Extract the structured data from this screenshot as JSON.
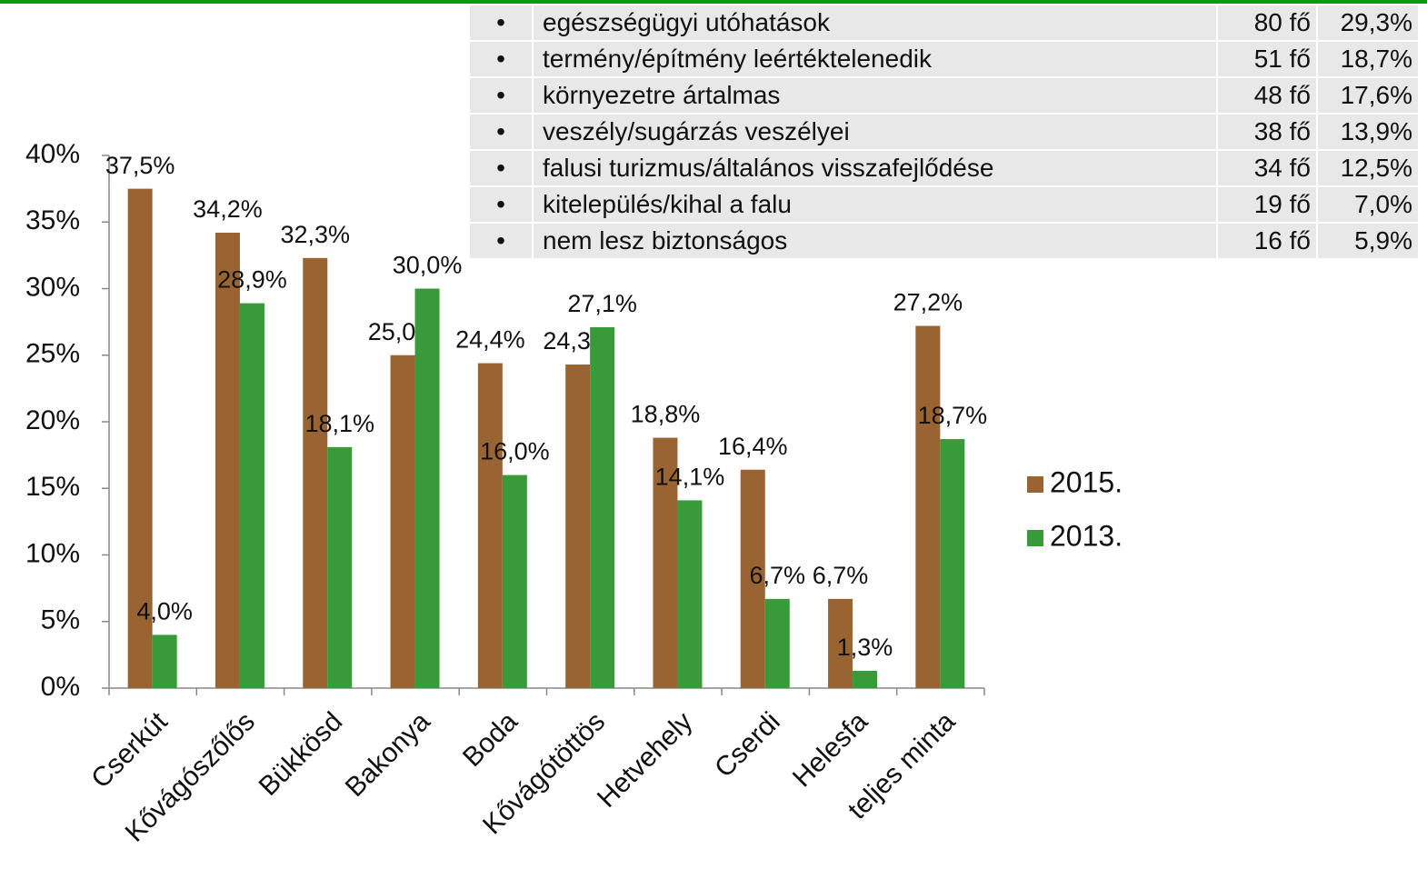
{
  "chart_data": {
    "type": "bar",
    "categories": [
      "Cserkút",
      "Kővágószőlős",
      "Bükkösd",
      "Bakonya",
      "Boda",
      "Kővágótöttös",
      "Hetvehely",
      "Cserdi",
      "Helesfa",
      "teljes minta"
    ],
    "series": [
      {
        "name": "2015.",
        "color": "#9a6432",
        "values": [
          37.5,
          34.2,
          32.3,
          25.0,
          24.4,
          24.3,
          18.8,
          16.4,
          6.7,
          27.2
        ],
        "value_labels": [
          "37,5%",
          "34,2%",
          "32,3%",
          "25,0%",
          "24,4%",
          "24,3%",
          "18,8%",
          "16,4%",
          "6,7%",
          "27,2%"
        ]
      },
      {
        "name": "2013.",
        "color": "#389a38",
        "values": [
          4.0,
          28.9,
          18.1,
          30.0,
          16.0,
          27.1,
          14.1,
          6.7,
          1.3,
          18.7
        ],
        "value_labels": [
          "4,0%",
          "28,9%",
          "18,1%",
          "30,0%",
          "16,0%",
          "27,1%",
          "14,1%",
          "6,7%",
          "1,3%",
          "18,7%"
        ]
      }
    ],
    "ylim": [
      0,
      40
    ],
    "yticks": [
      {
        "value": 0,
        "label": "0%"
      },
      {
        "value": 5,
        "label": "5%"
      },
      {
        "value": 10,
        "label": "10%"
      },
      {
        "value": 15,
        "label": "15%"
      },
      {
        "value": 20,
        "label": "20%"
      },
      {
        "value": 25,
        "label": "25%"
      },
      {
        "value": 30,
        "label": "30%"
      },
      {
        "value": 35,
        "label": "35%"
      },
      {
        "value": 40,
        "label": "40%"
      }
    ],
    "legend": "right"
  },
  "table": {
    "rows": [
      [
        "egészségügyi utóhatások",
        "80 fő",
        "29,3%"
      ],
      [
        "termény/építmény leértéktelenedik",
        "51 fő",
        "18,7%"
      ],
      [
        "környezetre ártalmas",
        "48 fő",
        "17,6%"
      ],
      [
        "veszély/sugárzás veszélyei",
        "38 fő",
        "13,9%"
      ],
      [
        "falusi turizmus/általános visszafejlődése",
        "34 fő",
        "12,5%"
      ],
      [
        "kitelepülés/kihal a falu",
        "19 fő",
        "7,0%"
      ],
      [
        "nem lesz biztonságos",
        "16 fő",
        "5,9%"
      ]
    ]
  }
}
